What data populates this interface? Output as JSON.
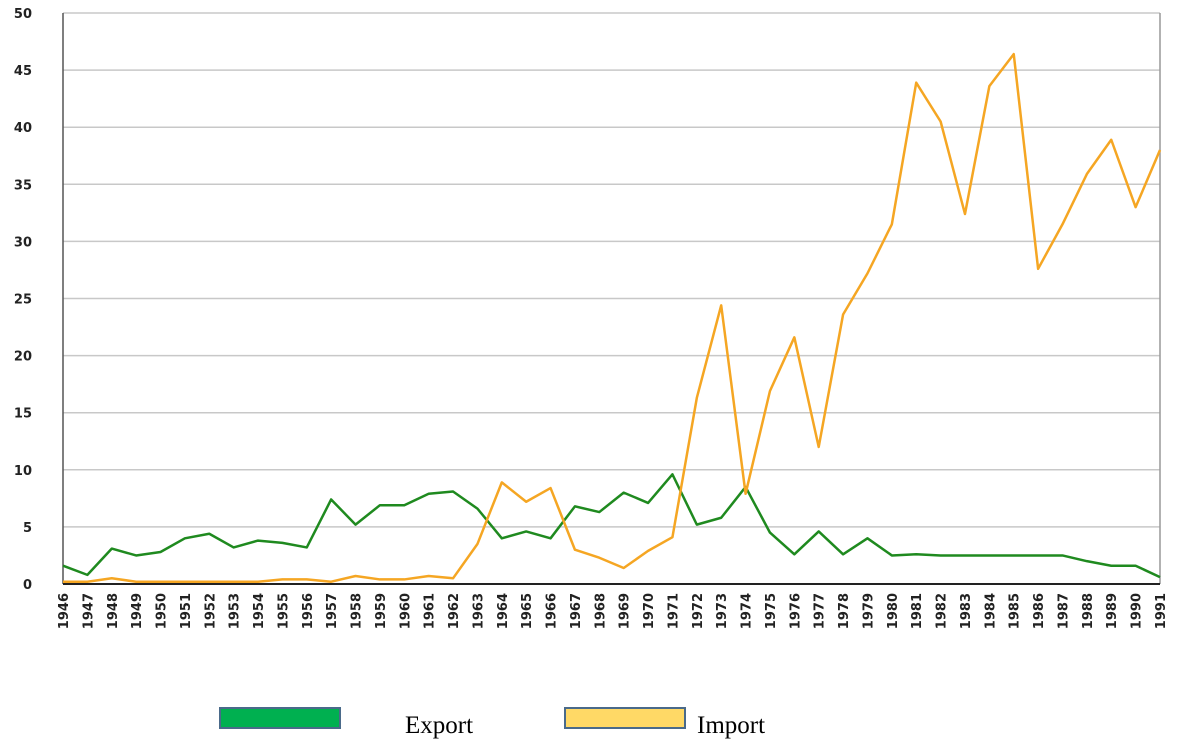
{
  "chart_data": {
    "type": "line",
    "categories": [
      "1946",
      "1947",
      "1948",
      "1949",
      "1950",
      "1951",
      "1952",
      "1953",
      "1954",
      "1955",
      "1956",
      "1957",
      "1958",
      "1959",
      "1960",
      "1961",
      "1962",
      "1963",
      "1964",
      "1965",
      "1966",
      "1967",
      "1968",
      "1969",
      "1970",
      "1971",
      "1972",
      "1973",
      "1974",
      "1975",
      "1976",
      "1977",
      "1978",
      "1979",
      "1980",
      "1981",
      "1982",
      "1983",
      "1984",
      "1985",
      "1986",
      "1987",
      "1988",
      "1989",
      "1990",
      "1991"
    ],
    "series": [
      {
        "name": "Export",
        "color": "#1f8a1f",
        "swatch_color": "#00b050",
        "values": [
          1.6,
          0.8,
          3.1,
          2.5,
          2.8,
          4.0,
          4.4,
          3.2,
          3.8,
          3.6,
          3.2,
          7.4,
          5.2,
          6.9,
          6.9,
          7.9,
          8.1,
          6.6,
          4.0,
          4.6,
          4.0,
          6.8,
          6.3,
          8.0,
          7.1,
          9.6,
          5.2,
          5.8,
          8.5,
          4.5,
          2.6,
          4.6,
          2.6,
          4.0,
          2.5,
          2.6,
          2.5,
          2.5,
          2.5,
          2.5,
          2.5,
          2.5,
          2.0,
          1.6,
          1.6,
          0.6
        ]
      },
      {
        "name": "Import",
        "color": "#f5a623",
        "swatch_color": "#ffd966",
        "values": [
          0.2,
          0.2,
          0.5,
          0.2,
          0.2,
          0.2,
          0.2,
          0.2,
          0.2,
          0.4,
          0.4,
          0.2,
          0.7,
          0.4,
          0.4,
          0.7,
          0.5,
          3.5,
          8.9,
          7.2,
          8.4,
          3.0,
          2.3,
          1.4,
          2.9,
          4.1,
          16.3,
          24.4,
          7.9,
          16.9,
          21.6,
          12.0,
          23.6,
          27.2,
          31.5,
          43.9,
          40.5,
          32.4,
          43.6,
          46.4,
          27.6,
          31.5,
          35.9,
          38.9,
          33.0,
          38.0
        ]
      }
    ],
    "ylim": [
      0,
      50
    ],
    "yticks": [
      0,
      5,
      10,
      15,
      20,
      25,
      30,
      35,
      40,
      45,
      50
    ],
    "grid": true
  }
}
